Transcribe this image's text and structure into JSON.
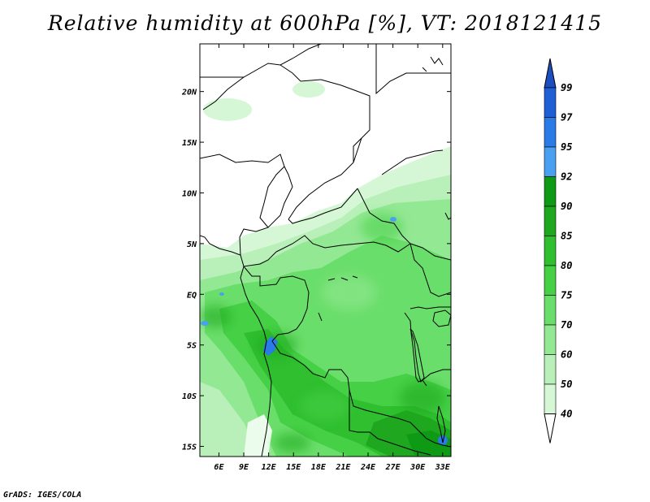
{
  "title": "Relative humidity at 600hPa [%], VT: 2018121415",
  "credit": "GrADS: IGES/COLA",
  "map": {
    "lat_ticks": [
      "20N",
      "15N",
      "10N",
      "5N",
      "EQ",
      "5S",
      "10S",
      "15S"
    ],
    "lat_values": [
      20,
      15,
      10,
      5,
      0,
      -5,
      -10,
      -15
    ],
    "lon_ticks": [
      "6E",
      "9E",
      "12E",
      "15E",
      "18E",
      "21E",
      "24E",
      "27E",
      "30E",
      "33E"
    ],
    "lon_values": [
      6,
      9,
      12,
      15,
      18,
      21,
      24,
      27,
      30,
      33
    ],
    "lon_range": [
      3.7,
      34.0
    ],
    "lat_range": [
      -16.0,
      24.7
    ]
  },
  "colorbar": {
    "levels": [
      "99",
      "97",
      "95",
      "92",
      "90",
      "85",
      "80",
      "75",
      "70",
      "60",
      "50",
      "40"
    ],
    "colors": [
      "#1e5fd6",
      "#2a7be8",
      "#4aa0f0",
      "#0e9a14",
      "#1fa81f",
      "#2fbf2f",
      "#46d046",
      "#6ade6a",
      "#93e893",
      "#b9f0b9",
      "#d5f7d5",
      "#ecfcec"
    ],
    "top_color": "#1c4ec0"
  },
  "colors": {
    "map_border": "#000000",
    "land_background": "#ffffff"
  }
}
